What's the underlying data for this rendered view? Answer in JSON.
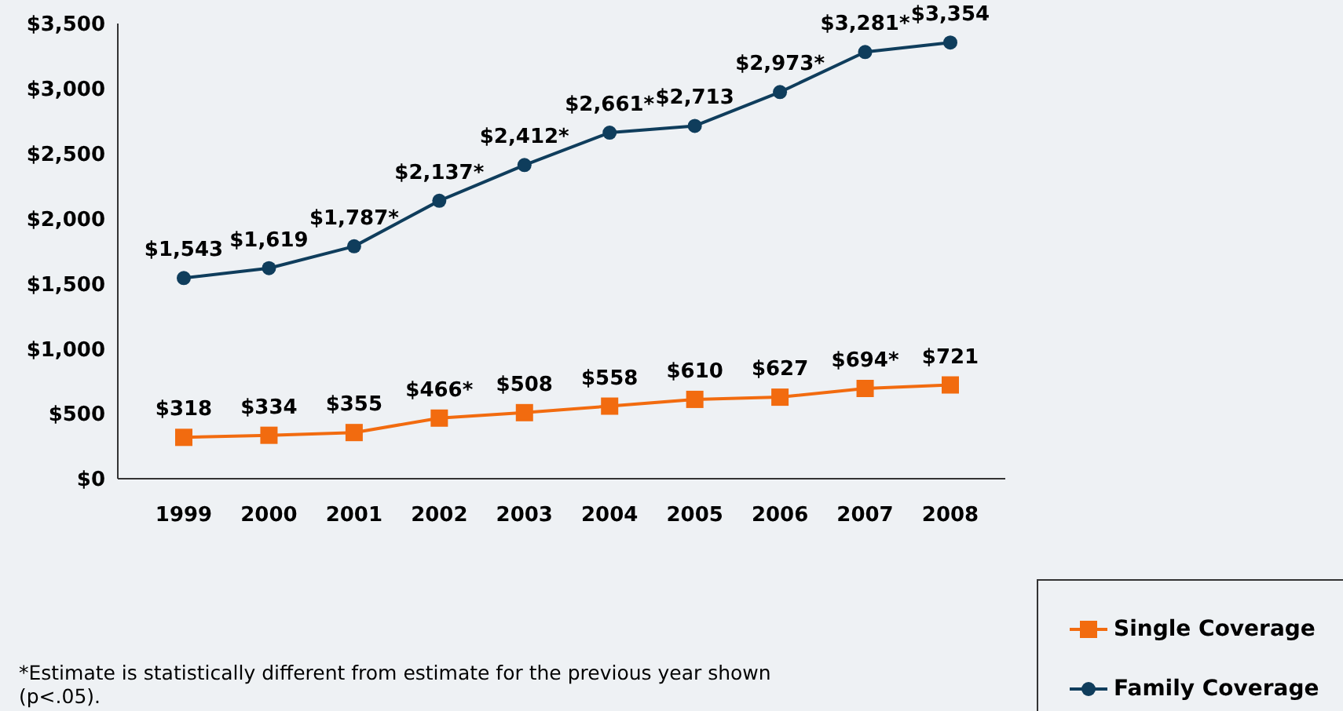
{
  "chart_data": {
    "type": "line",
    "categories": [
      "1999",
      "2000",
      "2001",
      "2002",
      "2003",
      "2004",
      "2005",
      "2006",
      "2007",
      "2008"
    ],
    "series": [
      {
        "name": "Single Coverage",
        "color": "#f26b0f",
        "marker": "square",
        "values": [
          318,
          334,
          355,
          466,
          508,
          558,
          610,
          627,
          694,
          721
        ],
        "value_labels": [
          "$318",
          "$334",
          "$355",
          "$466*",
          "$508",
          "$558",
          "$610",
          "$627",
          "$694*",
          "$721"
        ]
      },
      {
        "name": "Family Coverage",
        "color": "#0f3d5c",
        "marker": "circle",
        "values": [
          1543,
          1619,
          1787,
          2137,
          2412,
          2661,
          2713,
          2973,
          3281,
          3354
        ],
        "value_labels": [
          "$1,543",
          "$1,619",
          "$1,787*",
          "$2,137*",
          "$2,412*",
          "$2,661*",
          "$2,713",
          "$2,973*",
          "$3,281*",
          "$3,354"
        ]
      }
    ],
    "ylim": [
      0,
      3500
    ],
    "yticks": [
      {
        "value": 0,
        "label": "$0"
      },
      {
        "value": 500,
        "label": "$500"
      },
      {
        "value": 1000,
        "label": "$1,000"
      },
      {
        "value": 1500,
        "label": "$1,500"
      },
      {
        "value": 2000,
        "label": "$2,000"
      },
      {
        "value": 2500,
        "label": "$2,500"
      },
      {
        "value": 3000,
        "label": "$3,000"
      },
      {
        "value": 3500,
        "label": "$3,500"
      }
    ],
    "grid": false,
    "legend": "bottom right",
    "annotations": [
      "*Estimate is statistically different from estimate for the previous year shown (p<.05)."
    ]
  }
}
